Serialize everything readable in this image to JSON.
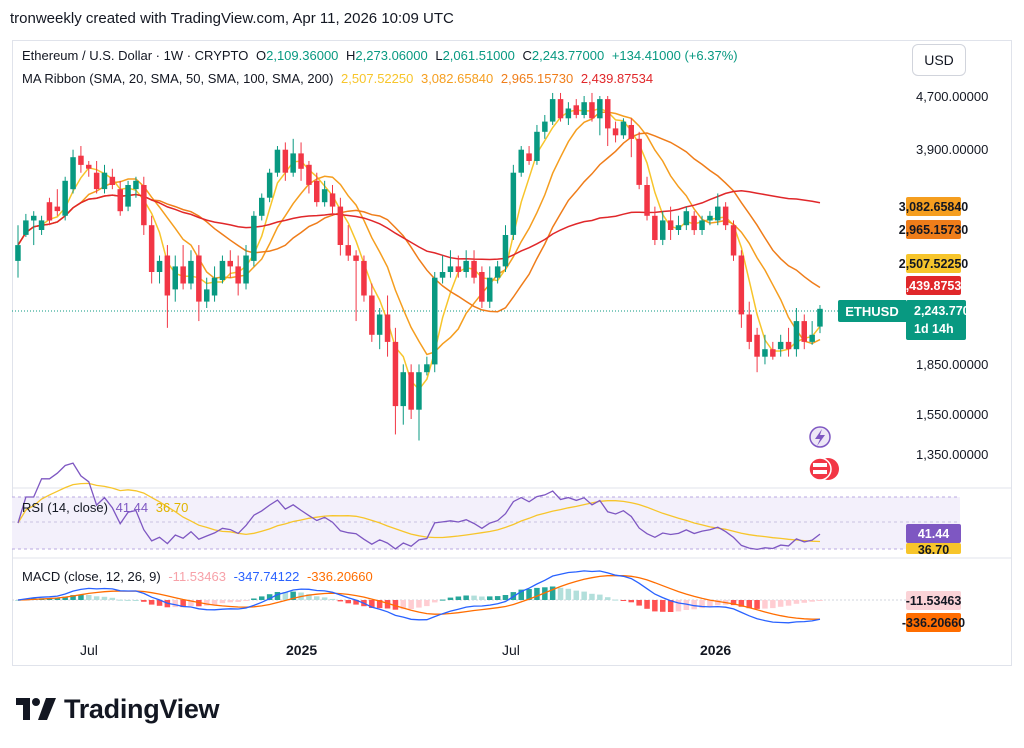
{
  "header": "tronweekly created with TradingView.com, Apr 11, 2026 10:09 UTC",
  "legend": {
    "symbol": "Ethereum / U.S. Dollar · 1W · CRYPTO",
    "o_label": "O",
    "o_value": "2,109.36000",
    "h_label": "H",
    "h_value": "2,273.06000",
    "l_label": "L",
    "l_value": "2,061.51000",
    "c_label": "C",
    "c_value": "2,243.77000",
    "change": "+134.41000 (+6.37%)",
    "ma_label": "MA Ribbon (SMA, 20, SMA, 50, SMA, 100, SMA, 200)",
    "ma_values": [
      "2,507.52250",
      "3,082.65840",
      "2,965.15730",
      "2,439.87534"
    ]
  },
  "currency": "USD",
  "price_axis": [
    "4,700.00000",
    "3,900.00000",
    "1,850.00000",
    "1,550.00000",
    "1,350.00000"
  ],
  "price_tags": {
    "ma50": "3,082.65840",
    "ma100": "2,965.15730",
    "ma20": "2,507.52250",
    "ma200": "2,439.87534"
  },
  "symbol_tag": "ETHUSD",
  "last_price": "2,243.77000",
  "countdown": "1d 14h",
  "rsi": {
    "label": "RSI (14, close)",
    "value": "41.44",
    "ma": "36.70",
    "tag": "41.44",
    "tag2": "36.70"
  },
  "macd": {
    "label": "MACD (close, 12, 26, 9)",
    "hist": "-11.53463",
    "macd": "-347.74122",
    "signal": "-336.20660",
    "tag_hist": "-11.53463",
    "tag_signal": "-336.20660"
  },
  "x_axis": [
    {
      "label": "Jul",
      "bold": false
    },
    {
      "label": "2025",
      "bold": true
    },
    {
      "label": "Jul",
      "bold": false
    },
    {
      "label": "2026",
      "bold": true
    }
  ],
  "brand": "TradingView",
  "colors": {
    "up": "#089981",
    "down": "#f23645",
    "ma20": "#f7c52b",
    "ma50": "#f59e1f",
    "ma100": "#ef7d1a",
    "ma200": "#e0272a",
    "rsi": "#7e57c2",
    "rsi_ma": "#f7c52b",
    "macd": "#2962ff",
    "signal": "#ff6d00"
  },
  "chart_data": {
    "type": "candlestick",
    "symbol": "ETHUSD",
    "timeframe": "1W",
    "last": {
      "open": 2109.36,
      "high": 2273.06,
      "low": 2061.51,
      "close": 2243.77
    },
    "ylim": [
      1250,
      5000
    ],
    "price_levels_shown": [
      4700,
      3900,
      1850,
      1550,
      1350
    ],
    "candles": [
      [
        2650,
        2800,
        2500,
        3000
      ],
      [
        2900,
        3050,
        2880,
        3120
      ],
      [
        3050,
        3100,
        2800,
        3150
      ],
      [
        2950,
        3050,
        2900,
        3100
      ],
      [
        3250,
        3050,
        3000,
        3300
      ],
      [
        3200,
        3150,
        3100,
        3400
      ],
      [
        3100,
        3500,
        3050,
        3550
      ],
      [
        3400,
        3800,
        3350,
        3900
      ],
      [
        3820,
        3700,
        3600,
        3950
      ],
      [
        3700,
        3650,
        3550,
        3750
      ],
      [
        3600,
        3400,
        3350,
        3750
      ],
      [
        3400,
        3600,
        3350,
        3700
      ],
      [
        3550,
        3450,
        3400,
        3650
      ],
      [
        3400,
        3150,
        3100,
        3500
      ],
      [
        3200,
        3450,
        3150,
        3500
      ],
      [
        3400,
        3500,
        3300,
        3550
      ],
      [
        3450,
        3000,
        2900,
        3550
      ],
      [
        3000,
        2550,
        2450,
        3100
      ],
      [
        2550,
        2650,
        2450,
        2700
      ],
      [
        2700,
        2350,
        2100,
        2800
      ],
      [
        2400,
        2600,
        2300,
        2700
      ],
      [
        2600,
        2450,
        2400,
        2800
      ],
      [
        2450,
        2650,
        2400,
        2750
      ],
      [
        2700,
        2300,
        2150,
        2800
      ],
      [
        2300,
        2400,
        2250,
        2500
      ],
      [
        2350,
        2500,
        2300,
        2600
      ],
      [
        2480,
        2650,
        2450,
        2700
      ],
      [
        2650,
        2600,
        2500,
        2750
      ],
      [
        2600,
        2450,
        2350,
        2700
      ],
      [
        2450,
        2700,
        2400,
        2800
      ],
      [
        2650,
        3100,
        2600,
        3150
      ],
      [
        3100,
        3300,
        3050,
        3350
      ],
      [
        3300,
        3600,
        3250,
        3650
      ],
      [
        3600,
        3900,
        3550,
        3950
      ],
      [
        3900,
        3600,
        3500,
        4000
      ],
      [
        3600,
        3850,
        3550,
        4050
      ],
      [
        3850,
        3650,
        3500,
        4000
      ],
      [
        3700,
        3450,
        3350,
        3750
      ],
      [
        3500,
        3250,
        3200,
        3600
      ],
      [
        3250,
        3400,
        3200,
        3500
      ],
      [
        3350,
        3200,
        3100,
        3450
      ],
      [
        3200,
        2800,
        2700,
        3300
      ],
      [
        2800,
        2700,
        2650,
        3000
      ],
      [
        2700,
        2650,
        2150,
        2750
      ],
      [
        2650,
        2350,
        2300,
        2700
      ],
      [
        2350,
        2050,
        2000,
        2450
      ],
      [
        2050,
        2200,
        1950,
        2250
      ],
      [
        2200,
        2000,
        1900,
        2350
      ],
      [
        2000,
        1600,
        1450,
        2100
      ],
      [
        1600,
        1800,
        1500,
        1850
      ],
      [
        1800,
        1580,
        1530,
        1850
      ],
      [
        1580,
        1800,
        1420,
        1850
      ],
      [
        1800,
        1850,
        1780,
        1900
      ],
      [
        1850,
        2500,
        1800,
        2550
      ],
      [
        2500,
        2550,
        2450,
        2700
      ],
      [
        2550,
        2600,
        2500,
        2750
      ],
      [
        2600,
        2550,
        2500,
        2700
      ],
      [
        2550,
        2650,
        2500,
        2750
      ],
      [
        2650,
        2500,
        2450,
        2750
      ],
      [
        2550,
        2300,
        2250,
        2600
      ],
      [
        2300,
        2500,
        2250,
        2600
      ],
      [
        2500,
        2600,
        2450,
        2650
      ],
      [
        2600,
        2900,
        2550,
        3000
      ],
      [
        2900,
        3600,
        2850,
        3700
      ],
      [
        3600,
        3900,
        3550,
        3950
      ],
      [
        3850,
        3750,
        3700,
        3950
      ],
      [
        3750,
        4150,
        3700,
        4250
      ],
      [
        4150,
        4300,
        4050,
        4400
      ],
      [
        4300,
        4650,
        4250,
        4750
      ],
      [
        4650,
        4350,
        4300,
        4750
      ],
      [
        4350,
        4500,
        4250,
        4600
      ],
      [
        4550,
        4400,
        4350,
        4650
      ],
      [
        4400,
        4600,
        4350,
        4700
      ],
      [
        4600,
        4350,
        4300,
        4750
      ],
      [
        4350,
        4650,
        4100,
        4700
      ],
      [
        4650,
        4200,
        3950,
        4700
      ],
      [
        4200,
        4100,
        4000,
        4300
      ],
      [
        4100,
        4300,
        4050,
        4350
      ],
      [
        4250,
        4050,
        3800,
        4350
      ],
      [
        4050,
        3450,
        3400,
        4150
      ],
      [
        3450,
        3100,
        3050,
        3550
      ],
      [
        3100,
        2850,
        2800,
        3200
      ],
      [
        2850,
        3050,
        2800,
        3150
      ],
      [
        3050,
        2950,
        2850,
        3200
      ],
      [
        2950,
        3000,
        2900,
        3100
      ],
      [
        3000,
        3150,
        2950,
        3200
      ],
      [
        3100,
        2950,
        2900,
        3150
      ],
      [
        2950,
        3050,
        2900,
        3100
      ],
      [
        3050,
        3100,
        3000,
        3150
      ],
      [
        3050,
        3200,
        3000,
        3350
      ],
      [
        3200,
        3000,
        2950,
        3250
      ],
      [
        3000,
        2700,
        2650,
        3050
      ],
      [
        2700,
        2200,
        2100,
        2750
      ],
      [
        2200,
        2000,
        1950,
        2300
      ],
      [
        2050,
        1900,
        1800,
        2100
      ],
      [
        1900,
        1950,
        1850,
        2050
      ],
      [
        1950,
        1900,
        1880,
        2000
      ],
      [
        1950,
        2000,
        1900,
        2050
      ],
      [
        2000,
        1950,
        1900,
        2100
      ],
      [
        1950,
        2150,
        1900,
        2250
      ],
      [
        2150,
        2000,
        1950,
        2200
      ],
      [
        2000,
        2050,
        1980,
        2150
      ],
      [
        2109.36,
        2243.77,
        2061.51,
        2273.06
      ]
    ],
    "ma_ribbon": [
      {
        "name": "SMA 20",
        "value": 2507.5225
      },
      {
        "name": "SMA 50",
        "value": 3082.6584
      },
      {
        "name": "SMA 100",
        "value": 2965.1573
      },
      {
        "name": "SMA 200",
        "value": 2439.87534
      }
    ],
    "rsi": {
      "period": 14,
      "value": 41.44,
      "ma": 36.7
    },
    "macd": {
      "fast": 12,
      "slow": 26,
      "signal": 9,
      "hist": -11.53463,
      "macd": -347.74122,
      "signal_value": -336.2066
    },
    "x_tick_labels": [
      "Jul",
      "2025",
      "Jul",
      "2026"
    ]
  }
}
